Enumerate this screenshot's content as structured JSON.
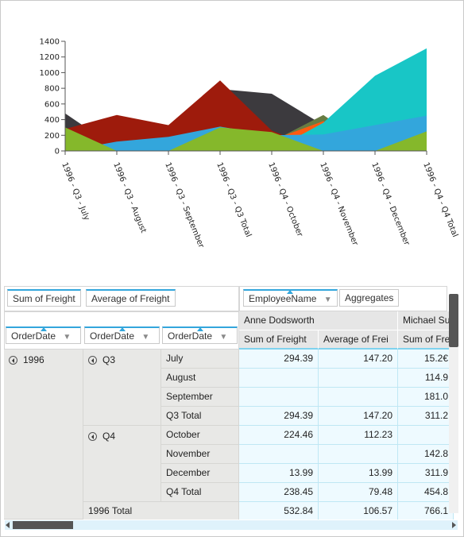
{
  "chart_data": {
    "type": "area",
    "categories": [
      "1996 - Q3 - July",
      "1996 - Q3 - August",
      "1996 - Q3 - September",
      "1996 - Q3 - Q3 Total",
      "1996 - Q4 - October",
      "1996 - Q4 - November",
      "1996 - Q4 - December",
      "1996 - Q4 - Q4 Total"
    ],
    "ylim": [
      0,
      1400
    ],
    "yticks": [
      0,
      200,
      400,
      600,
      800,
      1000,
      1200,
      1400
    ],
    "series": [
      {
        "color": "#3c3a3e",
        "values": [
          480,
          30,
          0,
          790,
          730,
          330,
          0,
          0
        ]
      },
      {
        "color": "#9e1b0c",
        "values": [
          280,
          460,
          330,
          900,
          260,
          0,
          0,
          0
        ]
      },
      {
        "color": "#687c42",
        "values": [
          0,
          0,
          0,
          0,
          120,
          460,
          0,
          0
        ]
      },
      {
        "color": "#ff5a10",
        "values": [
          0,
          0,
          0,
          0,
          140,
          380,
          0,
          0
        ]
      },
      {
        "color": "#18c6c6",
        "values": [
          0,
          0,
          0,
          0,
          0,
          360,
          960,
          1310
        ]
      },
      {
        "color": "#33a6dc",
        "values": [
          0,
          120,
          180,
          310,
          200,
          210,
          330,
          450
        ]
      },
      {
        "color": "#85b82b",
        "values": [
          300,
          0,
          0,
          300,
          240,
          0,
          0,
          250
        ]
      }
    ]
  },
  "pivot": {
    "data_fields": [
      "Sum of Freight",
      "Average of Freight"
    ],
    "column_fields": [
      "EmployeeName",
      "Aggregates"
    ],
    "row_fields": [
      "OrderDate",
      "OrderDate",
      "OrderDate"
    ],
    "employees": [
      "Anne Dodsworth",
      "Michael Su"
    ],
    "measures": [
      "Sum of Freight",
      "Average of Frei",
      "Sum of Frei"
    ],
    "year": "1996",
    "q3": "Q3",
    "q4": "Q4",
    "rows": [
      {
        "label": "July",
        "v": [
          "294.39",
          "147.20",
          "15.2€"
        ]
      },
      {
        "label": "August",
        "v": [
          "",
          "",
          "114.9"
        ]
      },
      {
        "label": "September",
        "v": [
          "",
          "",
          "181.0"
        ]
      },
      {
        "label": "Q3 Total",
        "v": [
          "294.39",
          "147.20",
          "311.2"
        ]
      },
      {
        "label": "October",
        "v": [
          "224.46",
          "112.23",
          ""
        ]
      },
      {
        "label": "November",
        "v": [
          "",
          "",
          "142.8"
        ]
      },
      {
        "label": "December",
        "v": [
          "13.99",
          "13.99",
          "311.9"
        ]
      },
      {
        "label": "Q4 Total",
        "v": [
          "238.45",
          "79.48",
          "454.8"
        ]
      }
    ],
    "year_total": {
      "label": "1996 Total",
      "v": [
        "532.84",
        "106.57",
        "766.1"
      ]
    }
  }
}
